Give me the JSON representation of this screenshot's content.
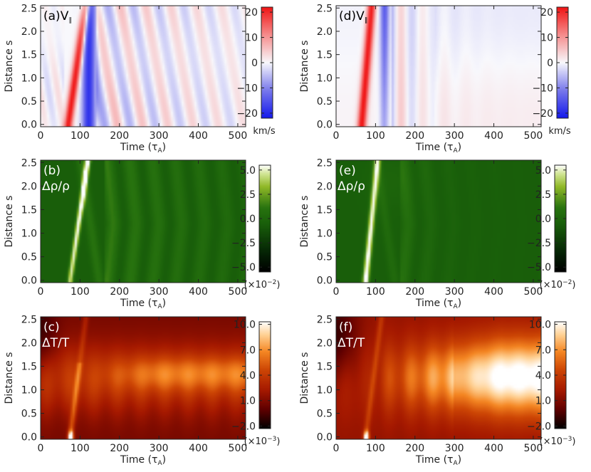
{
  "chart_data": [
    {
      "type": "heatmap",
      "panel_label": "(a)",
      "quantity": "V",
      "quantity_sub": "∥",
      "xlabel": "Time (τ",
      "xlabel_sub": "A",
      "xlabel_close": ")",
      "ylabel": "Distance s",
      "xlim": [
        0,
        520
      ],
      "ylim": [
        -0.05,
        2.55
      ],
      "x_ticks": [
        "0",
        "100",
        "200",
        "300",
        "400",
        "500"
      ],
      "y_ticks": [
        "0.0",
        "0.5",
        "1.0",
        "1.5",
        "2.0",
        "2.5"
      ],
      "colorbar": {
        "colormap": "blue-white-red",
        "range": [
          -22,
          22
        ],
        "ticks": [
          "20",
          "10",
          "0",
          "−10",
          "−20"
        ],
        "unit": "km/s"
      },
      "features": {
        "main_front": [
          [
            70,
            0.0
          ],
          [
            115,
            2.55
          ]
        ],
        "max_abs": 22,
        "pattern": "oscillating reflected waves, red/blue alternating bands"
      }
    },
    {
      "type": "heatmap",
      "panel_label": "(b)",
      "quantity": "Δρ/ρ",
      "xlabel": "Time (τ",
      "xlabel_sub": "A",
      "xlabel_close": ")",
      "ylabel": "Distance s",
      "xlim": [
        0,
        520
      ],
      "ylim": [
        -0.05,
        2.55
      ],
      "x_ticks": [
        "0",
        "100",
        "200",
        "300",
        "400",
        "500"
      ],
      "y_ticks": [
        "0.0",
        "0.5",
        "1.0",
        "1.5",
        "2.0",
        "2.5"
      ],
      "colorbar": {
        "colormap": "black-green-white",
        "range": [
          -5.5,
          5.5
        ],
        "ticks": [
          "5.0",
          "2.5",
          "0.0",
          "−2.5",
          "−5.0"
        ],
        "unit": "(×10",
        "unit_exp": "−2",
        "unit_close": ")"
      },
      "features": {
        "main_front": [
          [
            75,
            0.0
          ],
          [
            120,
            2.55
          ]
        ]
      }
    },
    {
      "type": "heatmap",
      "panel_label": "(c)",
      "quantity": "ΔT/T",
      "xlabel": "Time (τ",
      "xlabel_sub": "A",
      "xlabel_close": ")",
      "ylabel": "Distance s",
      "xlim": [
        0,
        520
      ],
      "ylim": [
        -0.05,
        2.55
      ],
      "x_ticks": [
        "0",
        "100",
        "200",
        "300",
        "400",
        "500"
      ],
      "y_ticks": [
        "0.0",
        "0.5",
        "1.0",
        "1.5",
        "2.0",
        "2.5"
      ],
      "colorbar": {
        "colormap": "black-red-yellow-white",
        "range": [
          -2.3,
          10.3
        ],
        "ticks": [
          "10.0",
          "7.0",
          "4.0",
          "1.0",
          "−2.0"
        ],
        "unit": "(×10",
        "unit_exp": "−3",
        "unit_close": ")"
      },
      "features": {
        "bright_band": [
          0.8,
          1.6
        ]
      }
    },
    {
      "type": "heatmap",
      "panel_label": "(d)",
      "quantity": "V",
      "quantity_sub": "∥",
      "xlabel": "Time (τ",
      "xlabel_sub": "A",
      "xlabel_close": ")",
      "ylabel": "Distance s",
      "xlim": [
        0,
        520
      ],
      "ylim": [
        -0.05,
        2.55
      ],
      "x_ticks": [
        "0",
        "100",
        "200",
        "300",
        "400",
        "500"
      ],
      "y_ticks": [
        "0.0",
        "0.5",
        "1.0",
        "1.5",
        "2.0",
        "2.5"
      ],
      "colorbar": {
        "colormap": "blue-white-red",
        "range": [
          -22,
          22
        ],
        "ticks": [
          "20",
          "10",
          "0",
          "−10",
          "−20"
        ],
        "unit": "km/s"
      },
      "features": {
        "main_front": [
          [
            65,
            0.0
          ],
          [
            90,
            2.55
          ]
        ],
        "pattern": "damped quickly after t≈200"
      }
    },
    {
      "type": "heatmap",
      "panel_label": "(e)",
      "quantity": "Δρ/ρ",
      "xlabel": "Time (τ",
      "xlabel_sub": "A",
      "xlabel_close": ")",
      "ylabel": "Distance s",
      "xlim": [
        0,
        520
      ],
      "ylim": [
        -0.05,
        2.55
      ],
      "x_ticks": [
        "0",
        "100",
        "200",
        "300",
        "400",
        "500"
      ],
      "y_ticks": [
        "0.0",
        "0.5",
        "1.0",
        "1.5",
        "2.0",
        "2.5"
      ],
      "colorbar": {
        "colormap": "black-green-white",
        "range": [
          -5.5,
          5.5
        ],
        "ticks": [
          "5.0",
          "2.5",
          "0.0",
          "−2.5",
          "−5.0"
        ],
        "unit": "(×10",
        "unit_exp": "−2",
        "unit_close": ")"
      },
      "features": {
        "main_front": [
          [
            75,
            0.0
          ],
          [
            105,
            2.55
          ]
        ]
      }
    },
    {
      "type": "heatmap",
      "panel_label": "(f)",
      "quantity": "ΔT/T",
      "xlabel": "Time (τ",
      "xlabel_sub": "A",
      "xlabel_close": ")",
      "ylabel": "Distance s",
      "xlim": [
        0,
        520
      ],
      "ylim": [
        -0.05,
        2.55
      ],
      "x_ticks": [
        "0",
        "100",
        "200",
        "300",
        "400",
        "500"
      ],
      "y_ticks": [
        "0.0",
        "0.5",
        "1.0",
        "1.5",
        "2.0",
        "2.5"
      ],
      "colorbar": {
        "colormap": "black-red-yellow-white",
        "range": [
          -2.3,
          10.3
        ],
        "ticks": [
          "10.0",
          "7.0",
          "4.0",
          "1.0",
          "−2.0"
        ],
        "unit": "(×10",
        "unit_exp": "−3",
        "unit_close": ")"
      },
      "features": {
        "bright_band": [
          0.6,
          2.0
        ],
        "peak_center": [
          480,
          1.25
        ]
      }
    }
  ]
}
